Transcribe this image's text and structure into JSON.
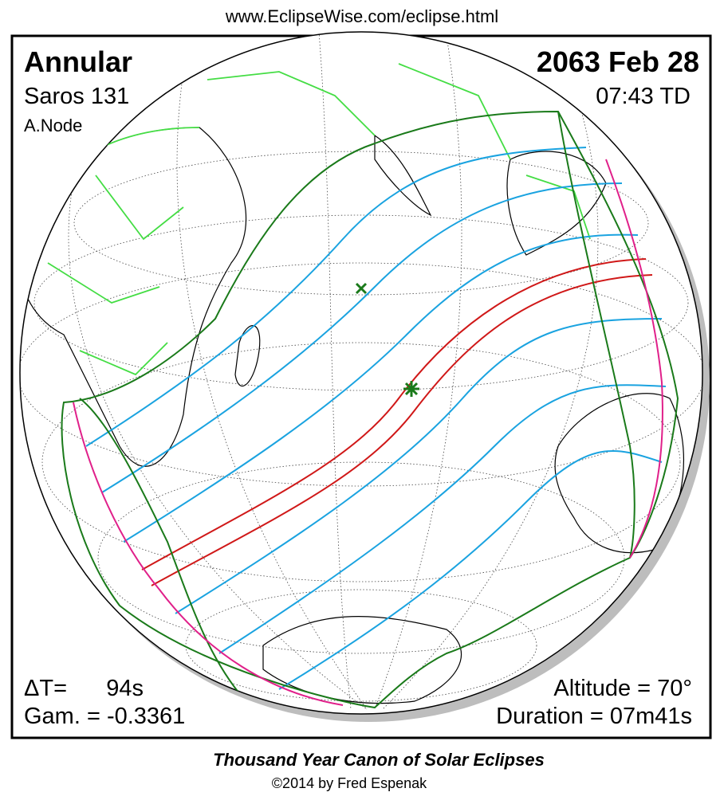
{
  "header": {
    "url": "www.EclipseWise.com/eclipse.html"
  },
  "labels": {
    "type": "Annular",
    "saros": "Saros 131",
    "node": "A.Node",
    "date": "2063 Feb 28",
    "time": "07:43 TD",
    "delta_t": "ΔT=",
    "delta_t_value": "94s",
    "gamma": "Gam. = -0.3361",
    "altitude": "Altitude = 70°",
    "duration": "Duration = 07m41s"
  },
  "footer": {
    "title": "Thousand Year Canon of Solar Eclipses",
    "copyright": "©2014 by Fred Espenak"
  }
}
